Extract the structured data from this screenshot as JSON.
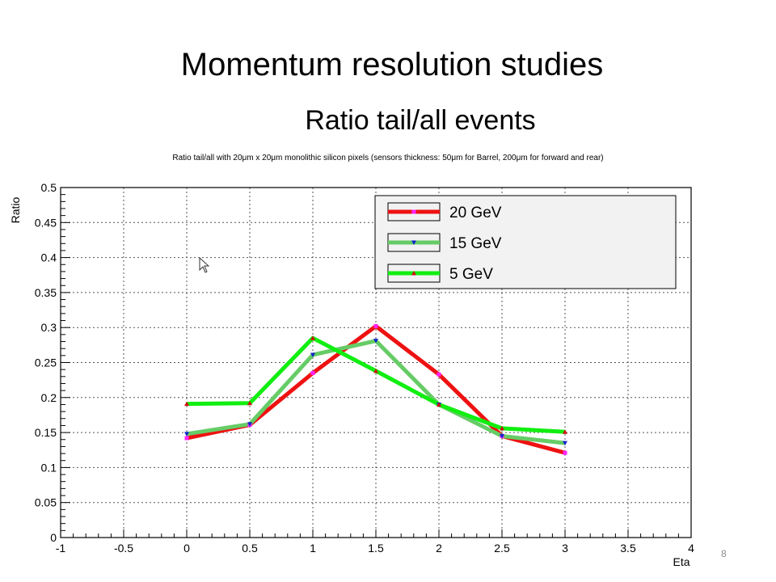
{
  "slide": {
    "title": "Momentum resolution studies",
    "subtitle": "Ratio tail/all events",
    "page_number": "8"
  },
  "chart_data": {
    "type": "line",
    "title": "Ratio tail/all with 20μm x 20μm monolithic silicon pixels (sensors thickness: 50μm for Barrel, 200μm for forward and rear)",
    "xlabel": "Eta",
    "ylabel": "Ratio",
    "xlim": [
      -1,
      4
    ],
    "ylim": [
      0,
      0.5
    ],
    "x_ticks": [
      "-1",
      "-0.5",
      "0",
      "0.5",
      "1",
      "1.5",
      "2",
      "2.5",
      "3",
      "3.5",
      "4"
    ],
    "y_ticks": [
      "0",
      "0.05",
      "0.1",
      "0.15",
      "0.2",
      "0.25",
      "0.3",
      "0.35",
      "0.4",
      "0.45",
      "0.5"
    ],
    "grid": true,
    "legend_position": "top-right",
    "x": [
      0,
      0.5,
      1,
      1.5,
      2,
      2.5,
      3
    ],
    "series": [
      {
        "name": "20 GeV",
        "color": "#ee1111",
        "marker_color": "#ff22ff",
        "marker": "square",
        "values": [
          0.142,
          0.161,
          0.235,
          0.302,
          0.233,
          0.145,
          0.121
        ]
      },
      {
        "name": "15 GeV",
        "color": "#66cc66",
        "marker_color": "#1122cc",
        "marker": "triangle-down",
        "values": [
          0.148,
          0.162,
          0.261,
          0.281,
          0.19,
          0.145,
          0.135
        ]
      },
      {
        "name": "5 GeV",
        "color": "#11ee11",
        "marker_color": "#cc1111",
        "marker": "triangle-up",
        "values": [
          0.191,
          0.192,
          0.285,
          0.238,
          0.19,
          0.156,
          0.151
        ]
      }
    ]
  }
}
